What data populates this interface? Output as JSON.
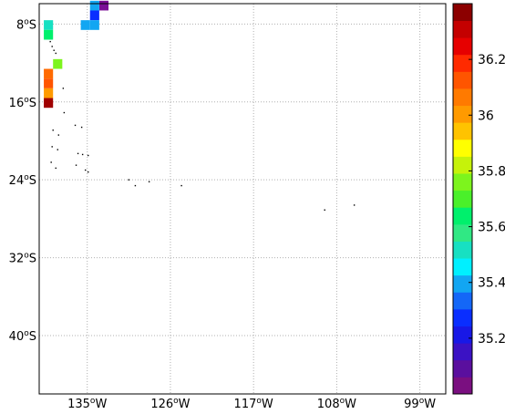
{
  "map": {
    "lon_labels": [
      {
        "lon": -135,
        "text": "135",
        "suffix": "W"
      },
      {
        "lon": -126,
        "text": "126",
        "suffix": "W"
      },
      {
        "lon": -117,
        "text": "117",
        "suffix": "W"
      },
      {
        "lon": -108,
        "text": "108",
        "suffix": "W"
      },
      {
        "lon": -99,
        "text": "99",
        "suffix": "W"
      }
    ],
    "lat_labels": [
      {
        "lat": -8,
        "text": "8",
        "suffix": "S"
      },
      {
        "lat": -16,
        "text": "16",
        "suffix": "S"
      },
      {
        "lat": -24,
        "text": "24",
        "suffix": "S"
      },
      {
        "lat": -32,
        "text": "32",
        "suffix": "S"
      },
      {
        "lat": -40,
        "text": "40",
        "suffix": "S"
      }
    ],
    "lon_range": [
      -140.2,
      -96.2
    ],
    "lat_range": [
      -5.9,
      -46
    ],
    "degree_symbol": "o",
    "grid": true,
    "grid_color": "#b0b0b0",
    "cells": [
      {
        "lon": -133.2,
        "lat": -6.1,
        "value": 35.08,
        "color": "#7a0f96"
      },
      {
        "lon": -134.2,
        "lat": -6.1,
        "value": 35.42,
        "color": "#12a6f2"
      },
      {
        "lon": -134.2,
        "lat": -7.1,
        "value": 35.25,
        "color": "#0a2eff"
      },
      {
        "lon": -135.2,
        "lat": -8.1,
        "value": 35.42,
        "color": "#12a6f2"
      },
      {
        "lon": -134.2,
        "lat": -8.1,
        "value": 35.42,
        "color": "#12a6f2"
      },
      {
        "lon": -139.2,
        "lat": -8.1,
        "value": 35.58,
        "color": "#17e0c2"
      },
      {
        "lon": -139.2,
        "lat": -9.1,
        "value": 35.67,
        "color": "#00f06c"
      },
      {
        "lon": -138.2,
        "lat": -12.1,
        "value": 35.83,
        "color": "#7df41d"
      },
      {
        "lon": -139.2,
        "lat": -13.1,
        "value": 36.08,
        "color": "#ff6a00"
      },
      {
        "lon": -139.2,
        "lat": -14.1,
        "value": 36.08,
        "color": "#ff5500"
      },
      {
        "lon": -139.2,
        "lat": -15.1,
        "value": 36.0,
        "color": "#ff9a00"
      },
      {
        "lon": -139.2,
        "lat": -16.1,
        "value": 36.33,
        "color": "#a00000"
      }
    ],
    "islands": [
      {
        "lon": -139.0,
        "lat": -9.8
      },
      {
        "lon": -138.6,
        "lat": -10.7
      },
      {
        "lon": -138.8,
        "lat": -10.3
      },
      {
        "lon": -138.4,
        "lat": -11.0
      },
      {
        "lon": -137.6,
        "lat": -14.6
      },
      {
        "lon": -137.5,
        "lat": -17.1
      },
      {
        "lon": -136.3,
        "lat": -18.4
      },
      {
        "lon": -135.6,
        "lat": -18.6
      },
      {
        "lon": -138.7,
        "lat": -18.9
      },
      {
        "lon": -138.1,
        "lat": -19.4
      },
      {
        "lon": -138.8,
        "lat": -20.6
      },
      {
        "lon": -138.2,
        "lat": -20.9
      },
      {
        "lon": -136.0,
        "lat": -21.3
      },
      {
        "lon": -135.5,
        "lat": -21.4
      },
      {
        "lon": -134.9,
        "lat": -21.5
      },
      {
        "lon": -138.9,
        "lat": -22.2
      },
      {
        "lon": -138.4,
        "lat": -22.8
      },
      {
        "lon": -136.2,
        "lat": -22.5
      },
      {
        "lon": -135.2,
        "lat": -23.0
      },
      {
        "lon": -134.9,
        "lat": -23.2
      },
      {
        "lon": -130.5,
        "lat": -24.0
      },
      {
        "lon": -129.8,
        "lat": -24.6
      },
      {
        "lon": -128.3,
        "lat": -24.2
      },
      {
        "lon": -124.8,
        "lat": -24.6
      },
      {
        "lon": -109.3,
        "lat": -27.1
      },
      {
        "lon": -106.1,
        "lat": -26.6
      }
    ]
  },
  "colorbar": {
    "vmin": 35.0,
    "vmax": 36.4,
    "colors": [
      "#7a0f80",
      "#5a0f9e",
      "#3b12c4",
      "#1818e6",
      "#0a2eff",
      "#1467f7",
      "#12a6f2",
      "#00f0ff",
      "#17e0c2",
      "#30e884",
      "#00f06c",
      "#4af02a",
      "#7df41d",
      "#c6f20a",
      "#ffff00",
      "#ffc300",
      "#ff9a00",
      "#ff7a00",
      "#ff5500",
      "#ff2a00",
      "#e60000",
      "#c40000",
      "#8c0000"
    ],
    "ticks": [
      {
        "value": 35.2,
        "label": "35.2"
      },
      {
        "value": 35.4,
        "label": "35.4"
      },
      {
        "value": 35.6,
        "label": "35.6"
      },
      {
        "value": 35.8,
        "label": "35.8"
      },
      {
        "value": 36.0,
        "label": "36"
      },
      {
        "value": 36.2,
        "label": "36.2"
      }
    ]
  }
}
